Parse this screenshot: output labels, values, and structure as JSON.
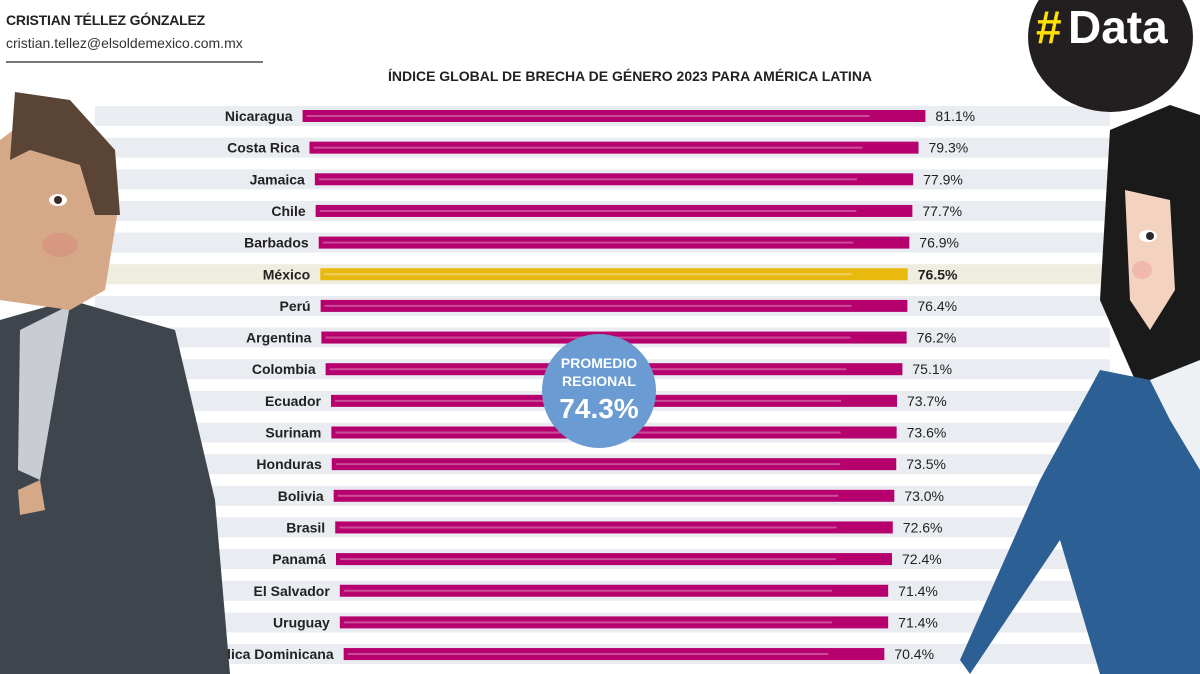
{
  "header": {
    "author": "CRISTIAN TÉLLEZ GÓNZALEZ",
    "email": "cristian.tellez@elsoldemexico.com.mx",
    "logo_text": "#Data"
  },
  "regional_average": {
    "label_line1": "PROMEDIO",
    "label_line2": "REGIONAL",
    "value": "74.3%"
  },
  "colors": {
    "bar": "#b5006e",
    "highlight_bar": "#e8b90f",
    "row_band": "#e9ecf0",
    "highlight_band": "#efece0",
    "average_circle": "#6a9bd3"
  },
  "chart_data": {
    "type": "bar",
    "orientation": "horizontal",
    "title": "ÍNDICE GLOBAL DE BRECHA DE GÉNERO 2023 PARA AMÉRICA LATINA",
    "categories": [
      "Nicaragua",
      "Costa Rica",
      "Jamaica",
      "Chile",
      "Barbados",
      "México",
      "Perú",
      "Argentina",
      "Colombia",
      "Ecuador",
      "Surinam",
      "Honduras",
      "Bolivia",
      "Brasil",
      "Panamá",
      "El Salvador",
      "Uruguay",
      "República Dominicana"
    ],
    "values": [
      81.1,
      79.3,
      77.9,
      77.7,
      76.9,
      76.5,
      76.4,
      76.2,
      75.1,
      73.7,
      73.6,
      73.5,
      73.0,
      72.6,
      72.4,
      71.4,
      71.4,
      70.4
    ],
    "value_labels": [
      "81.1%",
      "79.3%",
      "77.9%",
      "77.7%",
      "76.9%",
      "76.5%",
      "76.4%",
      "76.2%",
      "75.1%",
      "73.7%",
      "73.6%",
      "73.5%",
      "73.0%",
      "72.6%",
      "72.4%",
      "71.4%",
      "71.4%",
      "70.4%"
    ],
    "highlight": "México",
    "unit": "%",
    "regional_average": 74.3
  }
}
